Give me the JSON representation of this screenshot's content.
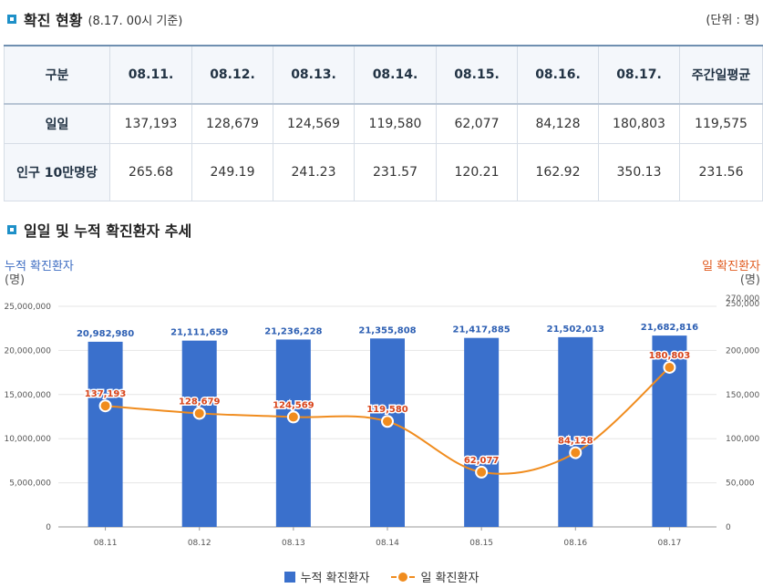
{
  "section1": {
    "title": "확진 현황",
    "subtitle": "(8.17. 00시 기준)",
    "unit": "(단위 : 명)"
  },
  "table": {
    "headers": [
      "구분",
      "08.11.",
      "08.12.",
      "08.13.",
      "08.14.",
      "08.15.",
      "08.16.",
      "08.17.",
      "주간일평균"
    ],
    "rows": [
      {
        "label": "일일",
        "values": [
          "137,193",
          "128,679",
          "124,569",
          "119,580",
          "62,077",
          "84,128",
          "180,803",
          "119,575"
        ]
      },
      {
        "label": "인구 10만명당",
        "values": [
          "265.68",
          "249.19",
          "241.23",
          "231.57",
          "120.21",
          "162.92",
          "350.13",
          "231.56"
        ]
      }
    ]
  },
  "section2": {
    "title": "일일 및 누적 확진환자 추세"
  },
  "chart_data": {
    "type": "bar+line",
    "title": "일일 및 누적 확진환자 추세",
    "categories": [
      "08.11",
      "08.12",
      "08.13",
      "08.14",
      "08.15",
      "08.16",
      "08.17"
    ],
    "left_axis": {
      "label": "누적 확진환자",
      "unit": "(명)",
      "range": [
        0,
        25000000
      ],
      "ticks": [
        "0",
        "5,000,000",
        "10,000,000",
        "15,000,000",
        "20,000,000",
        "25,000,000"
      ]
    },
    "right_axis": {
      "label": "일 확진환자",
      "unit": "(명)",
      "range": [
        0,
        250000
      ],
      "ticks": [
        "0",
        "50,000",
        "100,000",
        "150,000",
        "200,000",
        "250,000"
      ],
      "extra_top_tick": "270,000"
    },
    "series": [
      {
        "name": "누적 확진환자",
        "type": "bar",
        "axis": "left",
        "color": "#3a70cc",
        "values": [
          20982980,
          21111659,
          21236228,
          21355808,
          21417885,
          21502013,
          21682816
        ],
        "labels": [
          "20,982,980",
          "21,111,659",
          "21,236,228",
          "21,355,808",
          "21,417,885",
          "21,502,013",
          "21,682,816"
        ]
      },
      {
        "name": "일 확진환자",
        "type": "line",
        "axis": "right",
        "color": "#f08c1e",
        "values": [
          137193,
          128679,
          124569,
          119580,
          62077,
          84128,
          180803
        ],
        "labels": [
          "137,193",
          "128,679",
          "124,569",
          "119,580",
          "62,077",
          "84,128",
          "180,803"
        ]
      }
    ],
    "legend": [
      "누적 확진환자",
      "일 확진환자"
    ],
    "legend_position": "bottom"
  }
}
